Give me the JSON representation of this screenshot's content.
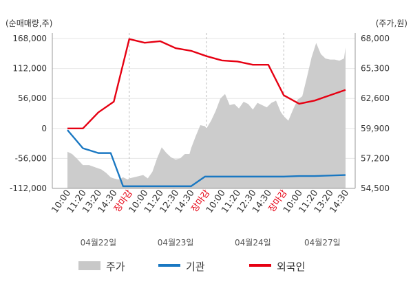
{
  "chart_data": {
    "type": "line",
    "left_axis": {
      "unit_label": "(순매매량,주)",
      "ticks": [
        168000,
        112000,
        56000,
        0,
        -56000,
        -112000
      ],
      "tick_labels": [
        "168,000",
        "112,000",
        "56,000",
        "0",
        "-56,000",
        "-112,000"
      ],
      "range": [
        -112000,
        168000
      ]
    },
    "right_axis": {
      "unit_label": "(주가,원)",
      "ticks": [
        68000,
        65300,
        62600,
        59900,
        57200,
        54500
      ],
      "tick_labels": [
        "68,000",
        "65,300",
        "62,600",
        "59,900",
        "57,200",
        "54,500"
      ],
      "range": [
        54500,
        68000
      ]
    },
    "x_tick_labels": [
      "10:00",
      "11:20",
      "13:20",
      "14:30",
      "장마감",
      "10:00",
      "11:20",
      "12:30",
      "14:30",
      "장마감",
      "10:00",
      "11:20",
      "12:30",
      "14:30",
      "장마감",
      "10:00",
      "11:20",
      "13:20",
      "14:30"
    ],
    "close_mark": "장마감",
    "x_ticks": [
      0,
      1,
      2,
      3,
      4,
      5,
      6,
      7,
      8,
      9,
      10,
      11,
      12,
      13,
      14,
      15,
      16,
      17,
      18
    ],
    "x_range": [
      0,
      18
    ],
    "dates": [
      {
        "label": "04월22일",
        "at": 2
      },
      {
        "label": "04월23일",
        "at": 7
      },
      {
        "label": "04월24일",
        "at": 12
      },
      {
        "label": "04월27일",
        "at": 16.5
      }
    ],
    "legend": [
      {
        "name": "주가",
        "color": "#c8c8c8"
      },
      {
        "name": "기관",
        "color": "#1a78c2"
      },
      {
        "name": "외국인",
        "color": "#e60012"
      }
    ],
    "series": [
      {
        "name": "주가",
        "axis": "right",
        "kind": "area",
        "x": [
          0,
          0.3,
          0.6,
          1.0,
          1.4,
          1.8,
          2.2,
          2.5,
          2.8,
          3.0,
          3.3,
          3.6,
          3.9,
          4.0,
          4.3,
          4.6,
          4.9,
          5.2,
          5.5,
          5.8,
          6.1,
          6.4,
          6.7,
          7.0,
          7.3,
          7.6,
          7.9,
          8.0,
          8.3,
          8.6,
          8.9,
          9.0,
          9.3,
          9.6,
          9.9,
          10.2,
          10.5,
          10.8,
          11.1,
          11.4,
          11.7,
          12.0,
          12.3,
          12.6,
          12.9,
          13.2,
          13.5,
          13.8,
          14.0,
          14.3,
          14.6,
          14.9,
          15.2,
          15.5,
          15.8,
          16.1,
          16.4,
          16.7,
          17.0,
          17.3,
          17.6,
          17.9,
          18.0
        ],
        "y": [
          57.8,
          57.6,
          57.2,
          56.6,
          56.6,
          56.4,
          56.2,
          55.9,
          55.5,
          55.4,
          55.3,
          55.5,
          55.3,
          55.4,
          55.5,
          55.6,
          55.7,
          55.4,
          56.0,
          57.2,
          58.2,
          57.7,
          57.3,
          57.1,
          57.2,
          57.6,
          57.6,
          58.1,
          59.2,
          60.2,
          60.1,
          59.9,
          60.6,
          61.5,
          62.6,
          63.0,
          62.0,
          62.1,
          61.7,
          62.3,
          62.1,
          61.6,
          62.2,
          62.0,
          61.8,
          62.2,
          62.4,
          61.4,
          61.0,
          60.6,
          61.6,
          62.5,
          62.8,
          64.5,
          66.3,
          67.6,
          66.6,
          66.2,
          66.1,
          66.1,
          66.0,
          66.2,
          67.2
        ]
      },
      {
        "name": "기관",
        "axis": "left",
        "kind": "line",
        "x": [
          0,
          1,
          2,
          2.8,
          3.6,
          4.0,
          5.0,
          6.0,
          7.0,
          8.0,
          8.9,
          10.0,
          11.0,
          12.0,
          13.0,
          14.0,
          15.0,
          16.0,
          17.0,
          18.0
        ],
        "y": [
          -3000,
          -37000,
          -46000,
          -46000,
          -108000,
          -108000,
          -108000,
          -108000,
          -108000,
          -108000,
          -90000,
          -90000,
          -90000,
          -90000,
          -90000,
          -90000,
          -89000,
          -89000,
          -88000,
          -87000
        ]
      },
      {
        "name": "외국인",
        "axis": "left",
        "kind": "line",
        "x": [
          0,
          1,
          2,
          3,
          4,
          5,
          6,
          7,
          8,
          9,
          10,
          11,
          12,
          13,
          14,
          15,
          16,
          17,
          18
        ],
        "y": [
          0,
          0,
          30000,
          50000,
          167000,
          160000,
          163000,
          150000,
          145000,
          135000,
          127000,
          125000,
          119000,
          119000,
          62000,
          46000,
          52000,
          62000,
          72000
        ]
      }
    ],
    "grid": true
  }
}
